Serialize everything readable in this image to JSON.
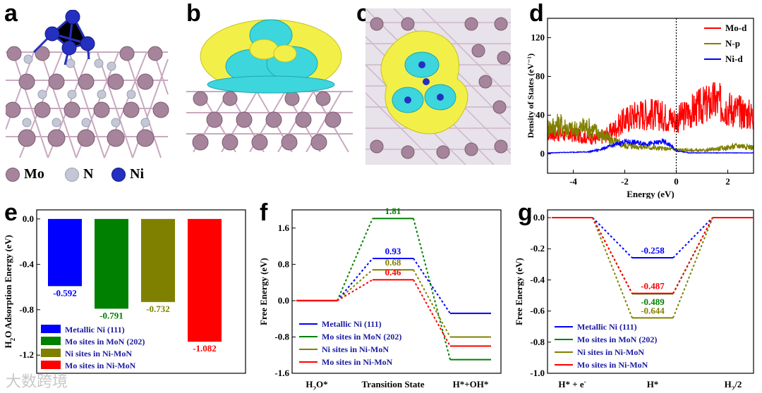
{
  "labels": {
    "a": "a",
    "b": "b",
    "c": "c",
    "d": "d",
    "e": "e",
    "f": "f",
    "g": "g"
  },
  "atom_legend": [
    {
      "name": "Mo",
      "color": "#a6859c"
    },
    {
      "name": "N",
      "color": "#c4c8d6"
    },
    {
      "name": "Ni",
      "color": "#2530c0"
    }
  ],
  "watermark": "大数跨境",
  "chart_data": [
    {
      "id": "d",
      "type": "line",
      "title": "",
      "xlabel": "Energy (eV)",
      "ylabel": "Density of States (eV⁻¹)",
      "xlim": [
        -5,
        3
      ],
      "ylim": [
        -20,
        140
      ],
      "xticks": [
        -4,
        -2,
        0,
        2
      ],
      "yticks": [
        0,
        40,
        80,
        120
      ],
      "fermi_level": 0,
      "series": [
        {
          "name": "Mo-d",
          "color": "#ff0000",
          "profile": [
            [
              -5,
              20
            ],
            [
              -4,
              18
            ],
            [
              -3,
              14
            ],
            [
              -2.6,
              20
            ],
            [
              -2,
              32
            ],
            [
              -1.5,
              38
            ],
            [
              -1,
              38
            ],
            [
              -0.5,
              36
            ],
            [
              0,
              32
            ],
            [
              0.4,
              38
            ],
            [
              1,
              45
            ],
            [
              1.5,
              50
            ],
            [
              2,
              44
            ],
            [
              2.5,
              40
            ],
            [
              3,
              36
            ]
          ]
        },
        {
          "name": "N-p",
          "color": "#808000",
          "profile": [
            [
              -5,
              25
            ],
            [
              -4.5,
              28
            ],
            [
              -4,
              22
            ],
            [
              -3.5,
              26
            ],
            [
              -3,
              20
            ],
            [
              -2.6,
              14
            ],
            [
              -2,
              8
            ],
            [
              -1,
              6
            ],
            [
              0,
              4
            ],
            [
              1,
              3
            ],
            [
              2,
              6
            ],
            [
              2.5,
              8
            ],
            [
              3,
              6
            ]
          ]
        },
        {
          "name": "Ni-d",
          "color": "#0000ff",
          "profile": [
            [
              -5,
              1
            ],
            [
              -3.4,
              2
            ],
            [
              -3,
              4
            ],
            [
              -2.5,
              8
            ],
            [
              -2,
              12
            ],
            [
              -1.5,
              11
            ],
            [
              -1,
              10
            ],
            [
              -0.5,
              12
            ],
            [
              -0.2,
              8
            ],
            [
              0,
              3
            ],
            [
              0.5,
              1
            ],
            [
              3,
              1
            ]
          ]
        }
      ]
    },
    {
      "id": "e",
      "type": "bar",
      "title": "",
      "xlabel": "",
      "ylabel": "H2O Adsorption Energy (eV)",
      "ylabel_parts": {
        "pre": "H",
        "sub": "2",
        "post": "O Adsorption Energy (eV)"
      },
      "ylim": [
        -1.36,
        0.08
      ],
      "yticks": [
        0.0,
        -0.4,
        -0.8,
        -1.2
      ],
      "ytick_labels": [
        "0.0",
        "-0.4",
        "-0.8",
        "-1.2"
      ],
      "categories": [
        "Metallic Ni (111)",
        "Mo sites in MoN (202)",
        "Ni sites in Ni-MoN",
        "Mo sites in Ni-MoN"
      ],
      "values": [
        -0.592,
        -0.791,
        -0.732,
        -1.082
      ],
      "value_labels": [
        "-0.592",
        "-0.791",
        "-0.732",
        "-1.082"
      ],
      "colors": [
        "#0000ff",
        "#008000",
        "#808000",
        "#ff0000"
      ]
    },
    {
      "id": "f",
      "type": "line",
      "title": "",
      "xlabel": "",
      "ylabel": "Free Energy (eV)",
      "ylim": [
        -1.6,
        2.0
      ],
      "yticks": [
        1.6,
        0.8,
        0.0,
        -0.8,
        -1.6
      ],
      "ytick_labels": [
        "1.6",
        "0.8",
        "0.0",
        "-0.8",
        "-1.6"
      ],
      "steps": [
        "H2O*",
        "Transition State",
        "H*+OH*"
      ],
      "step_labels": [
        {
          "pre": "H",
          "sub": "2",
          "post": "O*"
        },
        {
          "pre": "Transition State",
          "sub": "",
          "post": ""
        },
        {
          "pre": "H*+OH*",
          "sub": "",
          "post": ""
        }
      ],
      "series": [
        {
          "name": "Metallic Ni (111)",
          "color": "#0000ff",
          "values": [
            0,
            0.93,
            -0.28
          ],
          "label": "0.93"
        },
        {
          "name": "Mo sites in MoN (202)",
          "color": "#008000",
          "values": [
            0,
            1.81,
            -1.3
          ],
          "label": "1.81"
        },
        {
          "name": "Ni sites in Ni-MoN",
          "color": "#808000",
          "values": [
            0,
            0.68,
            -0.8
          ],
          "label": "0.68"
        },
        {
          "name": "Mo sites in Ni-MoN",
          "color": "#ff0000",
          "values": [
            0,
            0.46,
            -1.0
          ],
          "label": "0.46"
        }
      ]
    },
    {
      "id": "g",
      "type": "line",
      "title": "",
      "xlabel": "",
      "ylabel": "Free Energy (eV)",
      "ylim": [
        -1.0,
        0.05
      ],
      "yticks": [
        0.0,
        -0.2,
        -0.4,
        -0.6,
        -0.8,
        -1.0
      ],
      "ytick_labels": [
        "0.0",
        "-0.2",
        "-0.4",
        "-0.6",
        "-0.8",
        "-1.0"
      ],
      "steps": [
        "H* + e-",
        "H*",
        "H2/2"
      ],
      "step_labels": [
        {
          "pre": "H* + e",
          "sub": "",
          "sup": "-",
          "post": ""
        },
        {
          "pre": "H*",
          "sub": "",
          "post": ""
        },
        {
          "pre": "H",
          "sub": "2",
          "post": "/2"
        }
      ],
      "series": [
        {
          "name": "Metallic Ni (111)",
          "color": "#0000ff",
          "values": [
            0,
            -0.258,
            0
          ],
          "label": "-0.258"
        },
        {
          "name": "Mo sites in MoN (202)",
          "color": "#008000",
          "values": [
            0,
            -0.489,
            0
          ],
          "label": "-0.489"
        },
        {
          "name": "Ni sites in Ni-MoN",
          "color": "#808000",
          "values": [
            0,
            -0.644,
            0
          ],
          "label": "-0.644"
        },
        {
          "name": "Mo sites in Ni-MoN",
          "color": "#ff0000",
          "values": [
            0,
            -0.487,
            0
          ],
          "label": "-0.487"
        }
      ]
    }
  ]
}
